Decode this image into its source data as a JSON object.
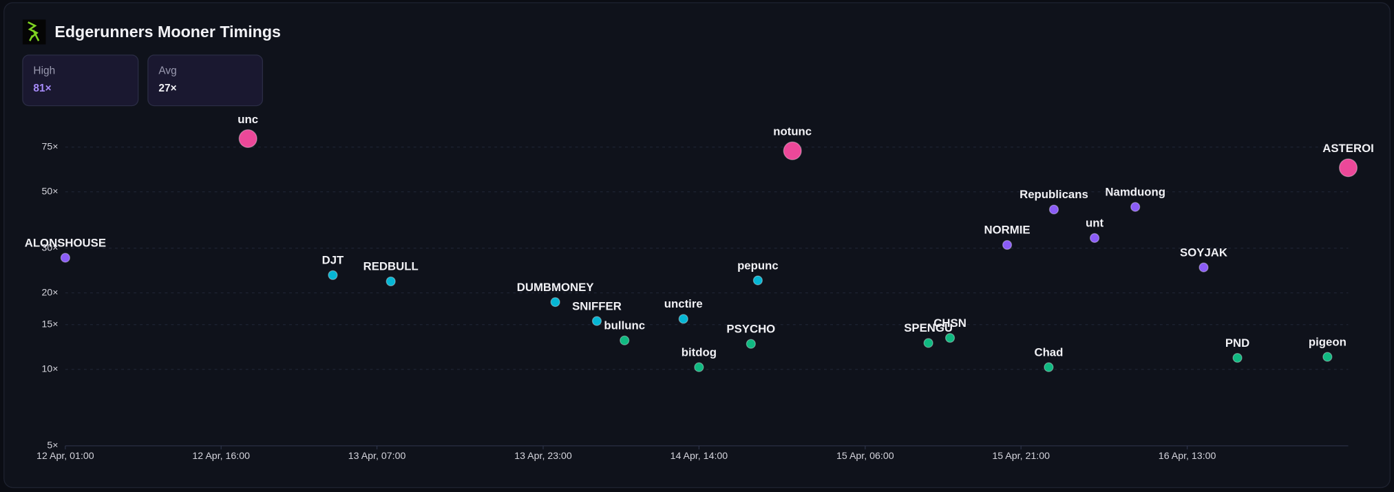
{
  "header": {
    "title": "Edgerunners Mooner Timings",
    "stats": [
      {
        "label": "High",
        "value": "81×"
      },
      {
        "label": "Avg",
        "value": "27×"
      }
    ]
  },
  "chart_data": {
    "type": "scatter",
    "log_y": true,
    "grid": true,
    "xlim": [
      "12 Apr, 01:00",
      "17 Apr, 04:30"
    ],
    "xticks": [
      "12 Apr, 01:00",
      "12 Apr, 16:00",
      "13 Apr, 07:00",
      "13 Apr, 23:00",
      "14 Apr, 14:00",
      "15 Apr, 06:00",
      "15 Apr, 21:00",
      "16 Apr, 13:00"
    ],
    "ylim": [
      5,
      90
    ],
    "yticks": [
      {
        "value": 5,
        "label": "5×"
      },
      {
        "value": 10,
        "label": "10×"
      },
      {
        "value": 15,
        "label": "15×"
      },
      {
        "value": 20,
        "label": "20×"
      },
      {
        "value": 30,
        "label": "30×"
      },
      {
        "value": 50,
        "label": "50×"
      },
      {
        "value": 75,
        "label": "75×"
      }
    ],
    "series": [
      {
        "color": "#ec4899",
        "marker_size": 10,
        "labels": [
          "unc",
          "notunc",
          "ASTEROI"
        ],
        "x": [
          "12 Apr, 18:35",
          "14 Apr, 23:00",
          "17 Apr, 04:30"
        ],
        "values": [
          81,
          72.5,
          62.2
        ]
      },
      {
        "color": "#8b5cf6",
        "marker_size": 5,
        "labels": [
          "ALONSHOUSE",
          "NORMIE",
          "Republicans",
          "unt",
          "Namduong",
          "SOYJAK"
        ],
        "x": [
          "12 Apr, 01:00",
          "15 Apr, 19:40",
          "16 Apr, 00:10",
          "16 Apr, 04:05",
          "16 Apr, 08:00",
          "16 Apr, 14:35"
        ],
        "values": [
          27.5,
          30.9,
          42.6,
          32.9,
          43.6,
          25.2
        ]
      },
      {
        "color": "#06b6d4",
        "marker_size": 5,
        "labels": [
          "DJT",
          "REDBULL",
          "DUMBMONEY",
          "SNIFFER",
          "unctire",
          "pepunc"
        ],
        "x": [
          "13 Apr, 02:45",
          "13 Apr, 08:20",
          "14 Apr, 00:10",
          "14 Apr, 04:10",
          "14 Apr, 12:30",
          "14 Apr, 19:40"
        ],
        "values": [
          23.5,
          22.2,
          18.4,
          15.5,
          15.8,
          22.4
        ]
      },
      {
        "color": "#10b981",
        "marker_size": 5,
        "labels": [
          "bullunc",
          "bitdog",
          "PSYCHO",
          "SPENGU",
          "CHSN",
          "Chad",
          "PND",
          "pigeon"
        ],
        "x": [
          "14 Apr, 06:50",
          "14 Apr, 14:00",
          "14 Apr, 19:00",
          "15 Apr, 12:05",
          "15 Apr, 14:10",
          "15 Apr, 23:40",
          "16 Apr, 17:50",
          "17 Apr, 02:30"
        ],
        "values": [
          13.0,
          10.2,
          12.6,
          12.7,
          13.3,
          10.2,
          11.1,
          11.2
        ]
      }
    ]
  }
}
